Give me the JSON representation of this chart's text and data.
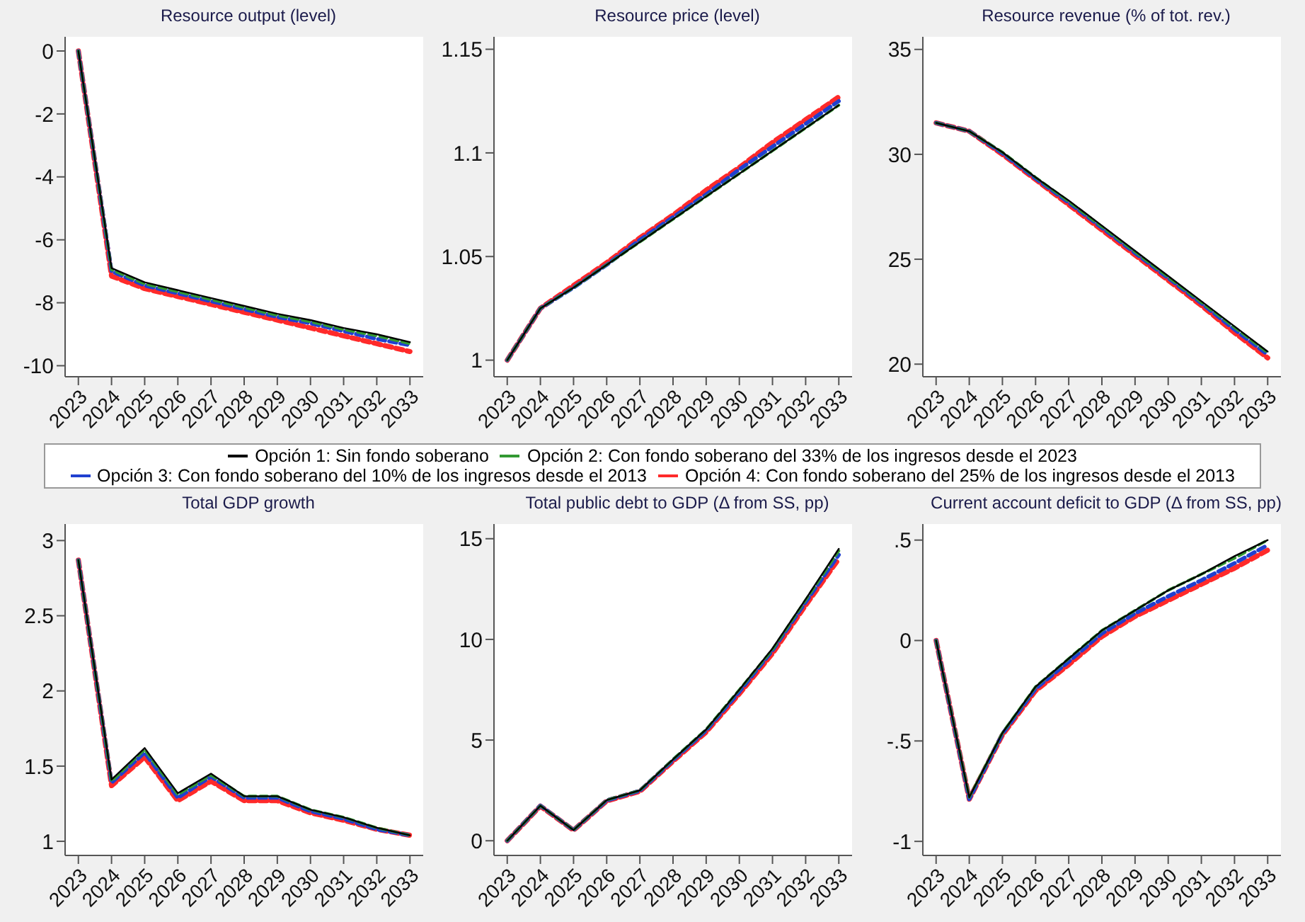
{
  "chart_data": [
    {
      "type": "line",
      "title": "Resource output (level)",
      "categories": [
        "2023",
        "2024",
        "2025",
        "2026",
        "2027",
        "2028",
        "2029",
        "2030",
        "2031",
        "2032",
        "2033"
      ],
      "ylim": [
        -10.35,
        0.45
      ],
      "yticks": [
        -10,
        -8,
        -6,
        -4,
        -2,
        0
      ],
      "legend": "bottom",
      "series": [
        {
          "name": "Opción 1: Sin fondo soberano",
          "color": "#000000",
          "line_style": "solid",
          "values": [
            0,
            -6.9,
            -7.35,
            -7.6,
            -7.85,
            -8.1,
            -8.35,
            -8.55,
            -8.8,
            -9.0,
            -9.25
          ]
        },
        {
          "name": "Opción 2: Con fondo soberano del 33% de los ingresos desde el 2023",
          "color": "#339933",
          "line_style": "dashed",
          "values": [
            0,
            -6.95,
            -7.4,
            -7.65,
            -7.9,
            -8.15,
            -8.4,
            -8.6,
            -8.85,
            -9.05,
            -9.3
          ]
        },
        {
          "name": "Opción 3: Con fondo soberano del 10% de los ingresos desde el 2013",
          "color": "#2040d0",
          "line_style": "dashed",
          "values": [
            0,
            -7.0,
            -7.45,
            -7.7,
            -7.95,
            -8.2,
            -8.45,
            -8.65,
            -8.9,
            -9.15,
            -9.35
          ]
        },
        {
          "name": "Opción 4: Con fondo soberano del 25% de los ingresos desde el 2013",
          "color": "#ff2a2a",
          "line_style": "dashed",
          "values": [
            0,
            -7.15,
            -7.55,
            -7.8,
            -8.05,
            -8.3,
            -8.55,
            -8.8,
            -9.05,
            -9.3,
            -9.55
          ]
        }
      ]
    },
    {
      "type": "line",
      "title": "Resource price (level)",
      "categories": [
        "2023",
        "2024",
        "2025",
        "2026",
        "2027",
        "2028",
        "2029",
        "2030",
        "2031",
        "2032",
        "2033"
      ],
      "ylim": [
        0.992,
        1.156
      ],
      "yticks": [
        1,
        1.05,
        1.1,
        1.15
      ],
      "series": [
        {
          "color": "#000000",
          "line_style": "solid",
          "values": [
            1,
            1.025,
            1.035,
            1.046,
            1.057,
            1.068,
            1.079,
            1.09,
            1.101,
            1.112,
            1.123
          ]
        },
        {
          "color": "#339933",
          "line_style": "dashed",
          "values": [
            1,
            1.025,
            1.035,
            1.046,
            1.057,
            1.068,
            1.079,
            1.09,
            1.101,
            1.112,
            1.123
          ]
        },
        {
          "color": "#2040d0",
          "line_style": "dashed",
          "values": [
            1,
            1.025,
            1.035,
            1.046,
            1.058,
            1.069,
            1.08,
            1.092,
            1.103,
            1.114,
            1.125
          ]
        },
        {
          "color": "#ff2a2a",
          "line_style": "dashed",
          "values": [
            1,
            1.025,
            1.036,
            1.047,
            1.059,
            1.07,
            1.082,
            1.093,
            1.105,
            1.116,
            1.127
          ]
        }
      ]
    },
    {
      "type": "line",
      "title": "Resource revenue (% of tot. rev.)",
      "categories": [
        "2023",
        "2024",
        "2025",
        "2026",
        "2027",
        "2028",
        "2029",
        "2030",
        "2031",
        "2032",
        "2033"
      ],
      "ylim": [
        19.4,
        35.6
      ],
      "yticks": [
        20,
        25,
        30,
        35
      ],
      "series": [
        {
          "color": "#000000",
          "line_style": "solid",
          "values": [
            31.5,
            31.1,
            30.1,
            28.9,
            27.8,
            26.6,
            25.4,
            24.2,
            23.0,
            21.8,
            20.6
          ]
        },
        {
          "color": "#339933",
          "line_style": "dashed",
          "values": [
            31.5,
            31.1,
            30.1,
            28.9,
            27.75,
            26.55,
            25.35,
            24.15,
            22.95,
            21.75,
            20.55
          ]
        },
        {
          "color": "#2040d0",
          "line_style": "dashed",
          "values": [
            31.5,
            31.1,
            30.05,
            28.85,
            27.7,
            26.5,
            25.3,
            24.1,
            22.9,
            21.65,
            20.45
          ]
        },
        {
          "color": "#ff2a2a",
          "line_style": "dashed",
          "values": [
            31.5,
            31.1,
            30.0,
            28.8,
            27.6,
            26.4,
            25.2,
            24.0,
            22.8,
            21.5,
            20.3
          ]
        }
      ]
    },
    {
      "type": "line",
      "title": "Total GDP growth",
      "categories": [
        "2023",
        "2024",
        "2025",
        "2026",
        "2027",
        "2028",
        "2029",
        "2030",
        "2031",
        "2032",
        "2033"
      ],
      "ylim": [
        0.906,
        3.11
      ],
      "yticks": [
        1,
        1.5,
        2,
        2.5,
        3
      ],
      "series": [
        {
          "color": "#000000",
          "line_style": "solid",
          "values": [
            2.87,
            1.41,
            1.62,
            1.32,
            1.45,
            1.3,
            1.3,
            1.21,
            1.16,
            1.09,
            1.04
          ]
        },
        {
          "color": "#339933",
          "line_style": "dashed",
          "values": [
            2.87,
            1.4,
            1.61,
            1.31,
            1.44,
            1.3,
            1.3,
            1.21,
            1.16,
            1.09,
            1.04
          ]
        },
        {
          "color": "#2040d0",
          "line_style": "dashed",
          "values": [
            2.87,
            1.39,
            1.59,
            1.29,
            1.43,
            1.29,
            1.29,
            1.2,
            1.15,
            1.08,
            1.04
          ]
        },
        {
          "color": "#ff2a2a",
          "line_style": "dashed",
          "values": [
            2.87,
            1.37,
            1.56,
            1.27,
            1.4,
            1.27,
            1.27,
            1.19,
            1.14,
            1.08,
            1.04
          ]
        }
      ]
    },
    {
      "type": "line",
      "title": "Total public debt to GDP (Δ from SS, pp)",
      "categories": [
        "2023",
        "2024",
        "2025",
        "2026",
        "2027",
        "2028",
        "2029",
        "2030",
        "2031",
        "2032",
        "2033"
      ],
      "ylim": [
        -0.73,
        15.73
      ],
      "yticks": [
        0,
        5,
        10,
        15
      ],
      "series": [
        {
          "color": "#000000",
          "line_style": "solid",
          "values": [
            0,
            1.74,
            0.53,
            2.02,
            2.5,
            4.04,
            5.53,
            7.5,
            9.55,
            12.0,
            14.5
          ]
        },
        {
          "color": "#339933",
          "line_style": "dashed",
          "values": [
            0,
            1.74,
            0.53,
            2.02,
            2.5,
            4.04,
            5.53,
            7.5,
            9.5,
            11.95,
            14.4
          ]
        },
        {
          "color": "#2040d0",
          "line_style": "dashed",
          "values": [
            0,
            1.74,
            0.53,
            2.0,
            2.48,
            4.0,
            5.48,
            7.4,
            9.45,
            11.85,
            14.2
          ]
        },
        {
          "color": "#ff2a2a",
          "line_style": "dashed",
          "values": [
            0,
            1.72,
            0.52,
            1.98,
            2.45,
            3.95,
            5.4,
            7.3,
            9.3,
            11.7,
            14.0
          ]
        }
      ]
    },
    {
      "type": "line",
      "title": "Current account deficit to GDP (Δ from SS, pp)",
      "categories": [
        "2023",
        "2024",
        "2025",
        "2026",
        "2027",
        "2028",
        "2029",
        "2030",
        "2031",
        "2032",
        "2033"
      ],
      "ylim": [
        -1.07,
        0.58
      ],
      "yticks": [
        -1,
        {
          "value": -0.5,
          "label": "-.5"
        },
        0,
        {
          "value": 0.5,
          "label": ".5"
        }
      ],
      "series": [
        {
          "color": "#000000",
          "line_style": "solid",
          "values": [
            0,
            -0.78,
            -0.46,
            -0.23,
            -0.09,
            0.05,
            0.15,
            0.25,
            0.33,
            0.42,
            0.5
          ]
        },
        {
          "color": "#339933",
          "line_style": "dashed",
          "values": [
            0,
            -0.78,
            -0.46,
            -0.23,
            -0.09,
            0.05,
            0.15,
            0.25,
            0.33,
            0.41,
            0.5
          ]
        },
        {
          "color": "#2040d0",
          "line_style": "dashed",
          "values": [
            0,
            -0.79,
            -0.465,
            -0.24,
            -0.105,
            0.035,
            0.135,
            0.22,
            0.3,
            0.385,
            0.475
          ]
        },
        {
          "color": "#ff2a2a",
          "line_style": "dashed",
          "values": [
            0,
            -0.79,
            -0.47,
            -0.25,
            -0.12,
            0.02,
            0.12,
            0.2,
            0.28,
            0.36,
            0.45
          ]
        }
      ]
    }
  ]
}
